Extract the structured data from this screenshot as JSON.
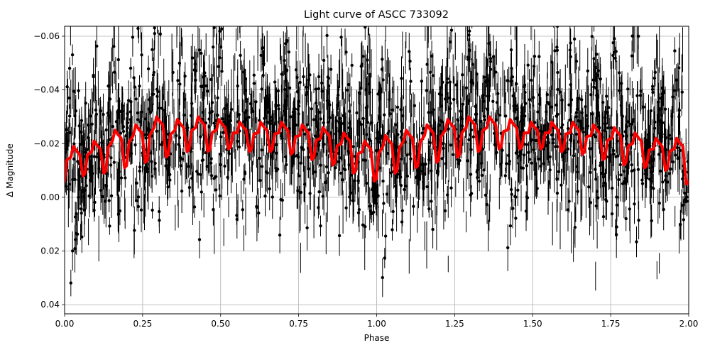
{
  "chart_data": {
    "type": "scatter",
    "title": "Light curve of ASCC 733092",
    "xlabel": "Phase",
    "ylabel": "Δ Magnitude",
    "xlim": [
      0.0,
      2.0
    ],
    "ylim": [
      0.0434,
      -0.0637
    ],
    "y_inverted": true,
    "grid": true,
    "legend": null,
    "x_ticks": [
      "0.00",
      "0.25",
      "0.50",
      "0.75",
      "1.00",
      "1.25",
      "1.50",
      "1.75",
      "2.00"
    ],
    "y_ticks": [
      "−0.06",
      "−0.04",
      "−0.02",
      "0.00",
      "0.02",
      "0.04"
    ],
    "x_tick_values": [
      0,
      0.25,
      0.5,
      0.75,
      1.0,
      1.25,
      1.5,
      1.75,
      2.0
    ],
    "y_tick_values": [
      -0.06,
      -0.04,
      -0.02,
      0.0,
      0.02,
      0.04
    ],
    "series": [
      {
        "name": "observations",
        "kind": "errorbar-scatter",
        "color": "#000000",
        "description": "Dense phase-folded photometry with vertical error bars, scattered roughly between -0.06 and +0.04 mag, oscillating with the model",
        "approx_center": -0.015,
        "approx_spread": 0.045
      },
      {
        "name": "model",
        "kind": "line",
        "color": "#ff0000",
        "linewidth": 4,
        "cycles": 30,
        "peaks": [
          -0.019,
          -0.021,
          -0.025,
          -0.027,
          -0.03,
          -0.029,
          -0.03,
          -0.029,
          -0.028,
          -0.028,
          -0.028,
          -0.027,
          -0.026,
          -0.024,
          -0.021,
          -0.023,
          -0.025,
          -0.027,
          -0.029,
          -0.03,
          -0.03,
          -0.029,
          -0.028,
          -0.028,
          -0.028,
          -0.027,
          -0.026,
          -0.024,
          -0.022,
          -0.022
        ],
        "troughs": [
          -0.008,
          -0.009,
          -0.011,
          -0.013,
          -0.015,
          -0.017,
          -0.017,
          -0.018,
          -0.017,
          -0.017,
          -0.016,
          -0.014,
          -0.012,
          -0.009,
          -0.006,
          -0.009,
          -0.011,
          -0.013,
          -0.015,
          -0.017,
          -0.018,
          -0.018,
          -0.018,
          -0.017,
          -0.016,
          -0.014,
          -0.012,
          -0.011,
          -0.01,
          -0.005
        ],
        "start_value": -0.006,
        "end_value": -0.005
      }
    ]
  },
  "colors": {
    "model": "#ff0000",
    "data": "#000000",
    "grid": "#b0b0b0",
    "axes": "#000000"
  }
}
